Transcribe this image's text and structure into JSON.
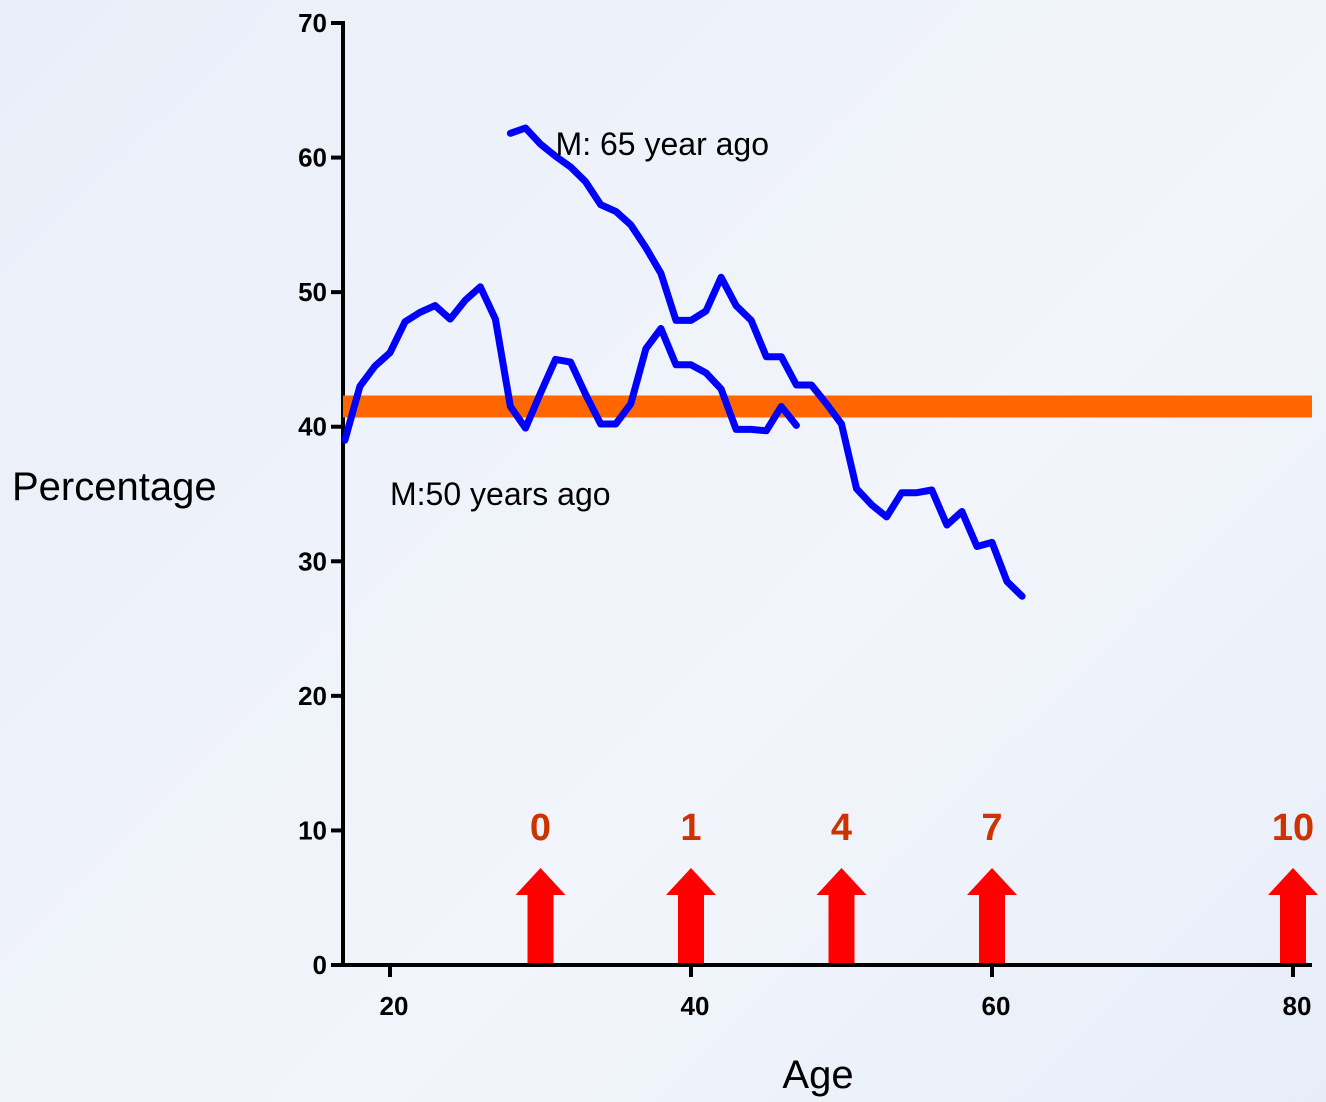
{
  "chart_data": {
    "type": "line",
    "xlabel": "Age",
    "ylabel": "Percentage",
    "xlim": [
      17,
      81
    ],
    "ylim": [
      0,
      70
    ],
    "x_ticks": [
      20,
      40,
      60,
      80
    ],
    "y_ticks": [
      0,
      10,
      20,
      30,
      40,
      50,
      60,
      70
    ],
    "grid": false,
    "series": [
      {
        "name": "M:50 years ago",
        "color": "#0000ff",
        "points": [
          [
            17,
            39
          ],
          [
            18,
            43
          ],
          [
            19,
            44.5
          ],
          [
            20,
            45.5
          ],
          [
            21,
            47.8
          ],
          [
            22,
            48.5
          ],
          [
            23,
            49
          ],
          [
            24,
            48
          ],
          [
            25,
            49.4
          ],
          [
            26,
            50.4
          ],
          [
            27,
            48
          ],
          [
            28,
            41.5
          ],
          [
            29,
            39.9
          ],
          [
            30,
            42.5
          ],
          [
            31,
            45
          ],
          [
            32,
            44.8
          ],
          [
            33,
            42.4
          ],
          [
            34,
            40.2
          ],
          [
            35,
            40.2
          ],
          [
            36,
            41.7
          ],
          [
            37,
            45.8
          ],
          [
            38,
            47.3
          ],
          [
            39,
            44.6
          ],
          [
            40,
            44.6
          ],
          [
            41,
            44
          ],
          [
            42,
            42.8
          ],
          [
            43,
            39.8
          ],
          [
            44,
            39.8
          ],
          [
            45,
            39.7
          ],
          [
            46,
            41.5
          ],
          [
            47,
            40.1
          ]
        ]
      },
      {
        "name": "M: 65 year ago",
        "color": "#0000ff",
        "points": [
          [
            28,
            61.8
          ],
          [
            29,
            62.2
          ],
          [
            30,
            61
          ],
          [
            31,
            60.1
          ],
          [
            32,
            59.3
          ],
          [
            33,
            58.2
          ],
          [
            34,
            56.5
          ],
          [
            35,
            56
          ],
          [
            36,
            55
          ],
          [
            37,
            53.3
          ],
          [
            38,
            51.4
          ],
          [
            39,
            47.9
          ],
          [
            40,
            47.9
          ],
          [
            41,
            48.6
          ],
          [
            42,
            51.1
          ],
          [
            43,
            49
          ],
          [
            44,
            47.9
          ],
          [
            45,
            45.2
          ],
          [
            46,
            45.2
          ],
          [
            47,
            43.1
          ],
          [
            48,
            43.1
          ],
          [
            49,
            41.7
          ],
          [
            50,
            40.2
          ],
          [
            51,
            35.4
          ],
          [
            52,
            34.2
          ],
          [
            53,
            33.3
          ],
          [
            54,
            35.1
          ],
          [
            55,
            35.1
          ],
          [
            56,
            35.3
          ],
          [
            57,
            32.7
          ],
          [
            58,
            33.7
          ],
          [
            59,
            31.1
          ],
          [
            60,
            31.4
          ],
          [
            61,
            28.5
          ],
          [
            62,
            27.4
          ]
        ]
      }
    ],
    "reference_line": {
      "y": 41.5,
      "color": "#ff6600"
    },
    "annotations": [
      {
        "text": "M: 65 year ago",
        "x": 31,
        "y": 61
      },
      {
        "text": "M:50 years ago",
        "x": 20,
        "y": 35
      }
    ],
    "markers": [
      {
        "label": "0",
        "x": 30
      },
      {
        "label": "1",
        "x": 40
      },
      {
        "label": "4",
        "x": 50
      },
      {
        "label": "7",
        "x": 60
      },
      {
        "label": "10",
        "x": 80
      }
    ],
    "marker_arrow_color": "#ff0000",
    "marker_label_color": "#cc3300"
  }
}
